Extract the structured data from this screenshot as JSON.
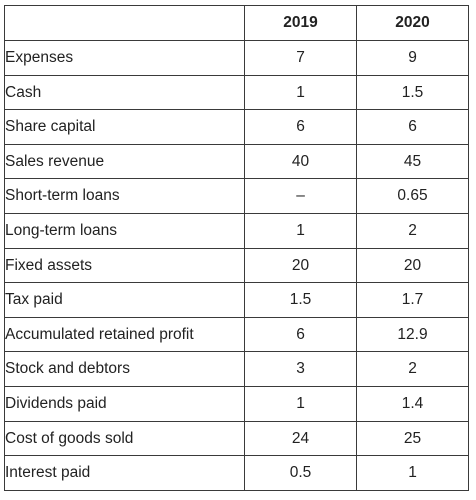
{
  "table": {
    "headers": [
      "",
      "2019",
      "2020"
    ],
    "rows": [
      {
        "label": "Expenses",
        "y2019": "7",
        "y2020": "9"
      },
      {
        "label": "Cash",
        "y2019": "1",
        "y2020": "1.5"
      },
      {
        "label": "Share capital",
        "y2019": "6",
        "y2020": "6"
      },
      {
        "label": "Sales revenue",
        "y2019": "40",
        "y2020": "45"
      },
      {
        "label": "Short-term loans",
        "y2019": "–",
        "y2020": "0.65"
      },
      {
        "label": "Long-term loans",
        "y2019": "1",
        "y2020": "2"
      },
      {
        "label": "Fixed assets",
        "y2019": "20",
        "y2020": "20"
      },
      {
        "label": "Tax paid",
        "y2019": "1.5",
        "y2020": "1.7"
      },
      {
        "label": "Accumulated retained profit",
        "y2019": "6",
        "y2020": "12.9"
      },
      {
        "label": "Stock and debtors",
        "y2019": "3",
        "y2020": "2"
      },
      {
        "label": "Dividends paid",
        "y2019": "1",
        "y2020": "1.4"
      },
      {
        "label": "Cost of goods sold",
        "y2019": "24",
        "y2020": "25"
      },
      {
        "label": "Interest paid",
        "y2019": "0.5",
        "y2020": "1"
      }
    ]
  }
}
